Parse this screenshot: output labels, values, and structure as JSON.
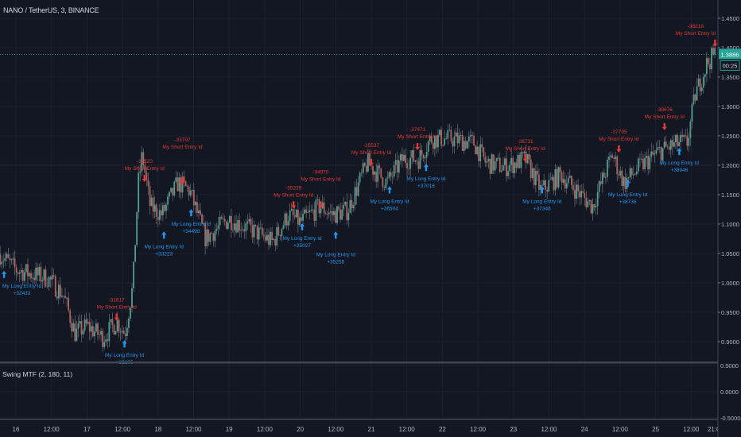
{
  "header": {
    "symbol_title": "NANO / TetherUS, 3, BINANCE"
  },
  "indicator": {
    "title": "Swing MTF (2, 180, 11)"
  },
  "colors": {
    "background": "#131722",
    "grid": "#1e2230",
    "up": "#4f9e96",
    "down": "#b0625c",
    "long": "#2196f3",
    "short": "#e53935",
    "price_tag": "#26a69a"
  },
  "chart_data": {
    "type": "candlestick",
    "title": "NANO / TetherUS, 3, BINANCE",
    "price_axis": {
      "ticks": [
        "1.4500",
        "1.4000",
        "1.3500",
        "1.3000",
        "1.2500",
        "1.2000",
        "1.1500",
        "1.1000",
        "1.0500",
        "1.0000",
        "0.9500",
        "0.9000"
      ],
      "range": [
        0.87,
        1.47
      ]
    },
    "indicator_axis": {
      "ticks": [
        "0.5000",
        "0.0000",
        "-0.5000"
      ],
      "range": [
        -0.55,
        0.55
      ]
    },
    "time_axis": {
      "ticks": [
        "16",
        "12:00",
        "17",
        "12:00",
        "18",
        "12:00",
        "19",
        "12:00",
        "20",
        "12:00",
        "21",
        "12:00",
        "22",
        "12:00",
        "23",
        "12:00",
        "24",
        "12:00",
        "25",
        "12:00",
        "21:00"
      ]
    },
    "grid": true,
    "current_price": "1.3886",
    "countdown": "00:25",
    "price_path": [
      [
        "15 18:40",
        1.049
      ],
      [
        "16 00:00",
        1.022
      ],
      [
        "16 10:40",
        1.008
      ],
      [
        "16 16:00",
        0.98
      ],
      [
        "16 20:00",
        0.914
      ],
      [
        "17 00:00",
        0.927
      ],
      [
        "17 05:20",
        0.907
      ],
      [
        "17 10:10",
        0.934
      ],
      [
        "17 12:50",
        0.914
      ],
      [
        "17 15:30",
        0.995
      ],
      [
        "17 17:20",
        1.17
      ],
      [
        "17 18:40",
        1.218
      ],
      [
        "17 21:20",
        1.13
      ],
      [
        "18 01:20",
        1.116
      ],
      [
        "18 06:40",
        1.17
      ],
      [
        "18 10:40",
        1.157
      ],
      [
        "18 16:00",
        1.076
      ],
      [
        "19 00:00",
        1.109
      ],
      [
        "19 08:00",
        1.089
      ],
      [
        "19 14:40",
        1.069
      ],
      [
        "19 20:00",
        1.116
      ],
      [
        "20 00:00",
        1.103
      ],
      [
        "20 06:40",
        1.13
      ],
      [
        "20 10:40",
        1.116
      ],
      [
        "20 16:00",
        1.123
      ],
      [
        "20 22:40",
        1.204
      ],
      [
        "21 05:20",
        1.17
      ],
      [
        "21 10:40",
        1.211
      ],
      [
        "21 16:00",
        1.211
      ],
      [
        "21 20:00",
        1.245
      ],
      [
        "22 02:40",
        1.245
      ],
      [
        "22 10:40",
        1.238
      ],
      [
        "22 14:40",
        1.204
      ],
      [
        "22 21:20",
        1.197
      ],
      [
        "23 04:00",
        1.211
      ],
      [
        "23 09:20",
        1.157
      ],
      [
        "23 16:00",
        1.184
      ],
      [
        "24 02:40",
        1.13
      ],
      [
        "24 09:20",
        1.218
      ],
      [
        "24 13:20",
        1.17
      ],
      [
        "24 18:40",
        1.197
      ],
      [
        "25 01:20",
        1.224
      ],
      [
        "25 08:00",
        1.238
      ],
      [
        "25 10:40",
        1.238
      ],
      [
        "25 13:20",
        1.319
      ],
      [
        "25 17:20",
        1.373
      ],
      [
        "25 20:00",
        1.389
      ]
    ],
    "markers": [
      {
        "side": "long",
        "label": "My Long Entry Id",
        "value": "+32433",
        "time": "15 20:00",
        "price": 1.015
      },
      {
        "side": "long",
        "label": "My Long Entry Id",
        "value": "+32105",
        "time": "17 12:40",
        "price": 0.897
      },
      {
        "side": "long",
        "label": "My Long Entry Id",
        "value": "+33223",
        "time": "18 02:00",
        "price": 1.082
      },
      {
        "side": "long",
        "label": "My Long Entry Id",
        "value": "+34498",
        "time": "18 11:10",
        "price": 1.12
      },
      {
        "side": "long",
        "label": "My Long Entry Id",
        "value": "+35027",
        "time": "20 00:40",
        "price": 1.096
      },
      {
        "side": "long",
        "label": "My Long Entry Id",
        "value": "+35255",
        "time": "20 12:00",
        "price": 1.082
      },
      {
        "side": "long",
        "label": "My Long Entry Id",
        "value": "+36504",
        "time": "21 06:10",
        "price": 1.159
      },
      {
        "side": "long",
        "label": "My Long Entry Id",
        "value": "+37018",
        "time": "21 18:30",
        "price": 1.197
      },
      {
        "side": "long",
        "label": "My Long Entry Id",
        "value": "+37346",
        "time": "23 09:40",
        "price": 1.159
      },
      {
        "side": "long",
        "label": "My Long Entry Id",
        "value": "+38736",
        "time": "24 14:35",
        "price": 1.17
      },
      {
        "side": "long",
        "label": "My Long Entry Id",
        "value": "+38946",
        "time": "25 08:00",
        "price": 1.224
      },
      {
        "side": "short",
        "label": "My Short Entry Id",
        "value": "-31617",
        "time": "17 10:00",
        "price": 0.941
      },
      {
        "side": "short",
        "label": "My Short Entry Id",
        "value": "-32520",
        "time": "17 19:25",
        "price": 1.177
      },
      {
        "side": "short",
        "label": "My Short Entry Id",
        "value": "-33797",
        "time": "18 08:15",
        "price": 1.173
      },
      {
        "side": "short",
        "label": "My Short Entry Id",
        "value": "-35239",
        "time": "19 21:45",
        "price": 1.132
      },
      {
        "side": "short",
        "label": "My Short Entry Id",
        "value": "-34970",
        "time": "20 06:55",
        "price": 1.132
      },
      {
        "side": "short",
        "label": "My Short Entry Id",
        "value": "-35537",
        "time": "21 00:00",
        "price": 1.204
      },
      {
        "side": "short",
        "label": "My Short Entry Id",
        "value": "-37471",
        "time": "21 15:35",
        "price": 1.231
      },
      {
        "side": "short",
        "label": "My Short Entry Id",
        "value": "-36731",
        "time": "23 04:00",
        "price": 1.211
      },
      {
        "side": "short",
        "label": "My Short Entry Id",
        "value": "-37795",
        "time": "24 11:35",
        "price": 1.227
      },
      {
        "side": "short",
        "label": "My Short Entry Id",
        "value": "-39676",
        "time": "25 03:00",
        "price": 1.265
      },
      {
        "side": "short",
        "label": "My Short Entry Id",
        "value": "-38218",
        "time": "25 20:05",
        "price": 1.407
      }
    ]
  }
}
